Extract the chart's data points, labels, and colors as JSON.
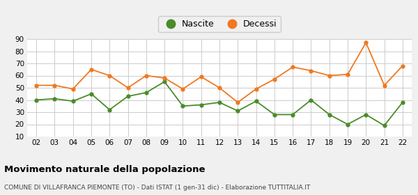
{
  "years": [
    "02",
    "03",
    "04",
    "05",
    "06",
    "07",
    "08",
    "09",
    "10",
    "11",
    "12",
    "13",
    "14",
    "15",
    "16",
    "17",
    "18",
    "19",
    "20",
    "21",
    "22"
  ],
  "nascite": [
    40,
    41,
    39,
    45,
    32,
    43,
    46,
    55,
    35,
    36,
    38,
    31,
    39,
    28,
    28,
    40,
    28,
    20,
    28,
    19,
    38
  ],
  "decessi": [
    52,
    52,
    49,
    65,
    60,
    50,
    60,
    58,
    49,
    59,
    50,
    38,
    49,
    57,
    67,
    64,
    60,
    61,
    87,
    52,
    68
  ],
  "nascite_color": "#4a8c2a",
  "decessi_color": "#f07820",
  "background_color": "#f0f0f0",
  "plot_bg_color": "#ffffff",
  "grid_color": "#cccccc",
  "ylim": [
    10,
    90
  ],
  "yticks": [
    10,
    20,
    30,
    40,
    50,
    60,
    70,
    80,
    90
  ],
  "title": "Movimento naturale della popolazione",
  "subtitle": "COMUNE DI VILLAFRANCA PIEMONTE (TO) - Dati ISTAT (1 gen-31 dic) - Elaborazione TUTTITALIA.IT",
  "legend_nascite": "Nascite",
  "legend_decessi": "Decessi"
}
